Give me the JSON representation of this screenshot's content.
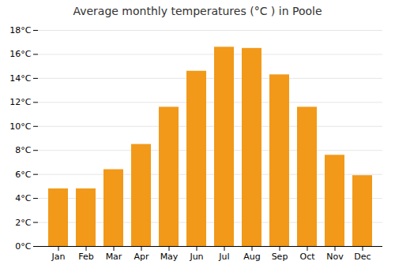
{
  "chart_data": {
    "type": "bar",
    "title": "Average monthly temperatures (°C ) in Poole",
    "categories": [
      "Jan",
      "Feb",
      "Mar",
      "Apr",
      "May",
      "Jun",
      "Jul",
      "Aug",
      "Sep",
      "Oct",
      "Nov",
      "Dec"
    ],
    "values": [
      4.8,
      4.8,
      6.4,
      8.5,
      11.6,
      14.6,
      16.6,
      16.5,
      14.3,
      11.6,
      7.6,
      5.9
    ],
    "color": "#F2991A",
    "ylim": [
      0,
      18
    ],
    "yticks": [
      {
        "value": 0,
        "label": "0°C"
      },
      {
        "value": 2,
        "label": "2°C"
      },
      {
        "value": 4,
        "label": "4°C"
      },
      {
        "value": 6,
        "label": "6°C"
      },
      {
        "value": 8,
        "label": "8°C"
      },
      {
        "value": 10,
        "label": "10°C"
      },
      {
        "value": 12,
        "label": "12°C"
      },
      {
        "value": 14,
        "label": "14°C"
      },
      {
        "value": 16,
        "label": "16°C"
      },
      {
        "value": 18,
        "label": "18°C"
      }
    ],
    "grid": true
  }
}
